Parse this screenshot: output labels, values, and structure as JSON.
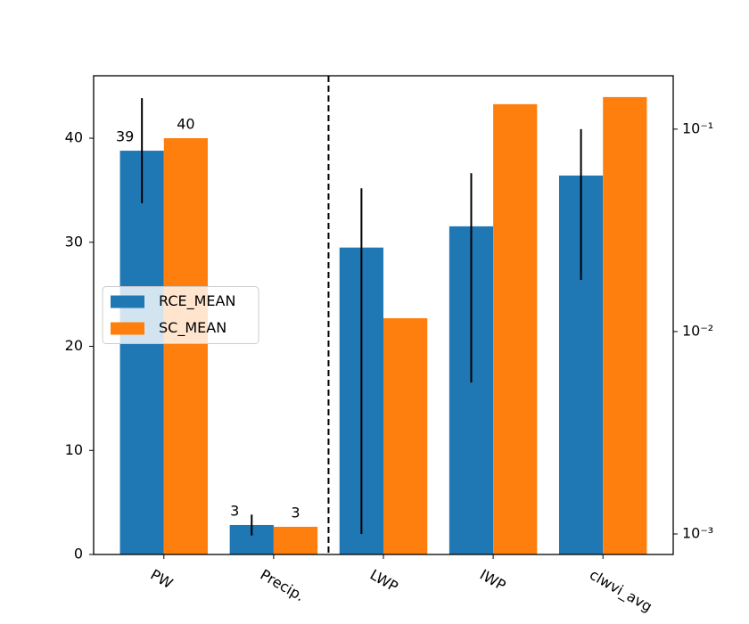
{
  "chart_data": {
    "type": "bar",
    "categories": [
      "PW",
      "Precip.",
      "LWP",
      "IWP",
      "clwvi_avg"
    ],
    "axes": [
      "y",
      "y",
      "y2",
      "y2",
      "y2"
    ],
    "series": [
      {
        "name": "RCE_MEAN",
        "color": "#1f77b4",
        "values": [
          38.8,
          2.83,
          0.026,
          0.0331,
          0.059
        ],
        "errors": [
          5.05,
          1.0,
          0.025,
          0.0275,
          0.041
        ],
        "value_labels": [
          "39",
          "3",
          null,
          null,
          null
        ]
      },
      {
        "name": "SC_MEAN",
        "color": "#ff7f0e",
        "values": [
          40.0,
          2.66,
          0.01164,
          0.1328,
          0.144
        ],
        "value_labels": [
          "40",
          "3",
          null,
          null,
          null
        ]
      }
    ],
    "ylim": [
      0,
      46
    ],
    "yticks": [
      0,
      10,
      20,
      30,
      40
    ],
    "y2lim": [
      0.000792,
      0.1835
    ],
    "y2log": true,
    "y2ticks": [
      {
        "value": 0.001,
        "label": "10⁻³"
      },
      {
        "value": 0.01,
        "label": "10⁻²"
      },
      {
        "value": 0.1,
        "label": "10⁻¹"
      }
    ],
    "legend": "center left"
  }
}
